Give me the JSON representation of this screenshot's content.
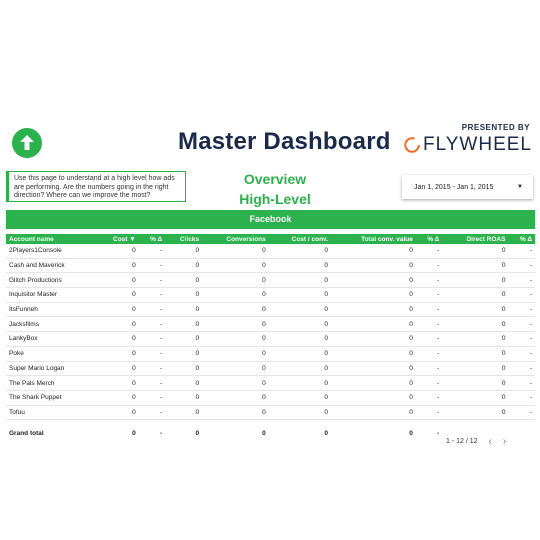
{
  "header": {
    "title": "Master Dashboard",
    "presented_by": "PRESENTED BY",
    "brand": "FLYWHEEL",
    "logo_icon": "upload-arrow-icon"
  },
  "intro": {
    "description": "Use this page to understand at a high level how ads are performing. Are the numbers going in the right direction? Where can we improve the most?",
    "overview_line1": "Overview",
    "overview_line2": "High-Level"
  },
  "date_range": {
    "value": "Jan 1, 2015 - Jan 1, 2015",
    "arrow": "▼"
  },
  "section": {
    "title": "Facebook"
  },
  "table": {
    "columns": [
      "Account name",
      "Cost ▼",
      "% Δ",
      "Clicks",
      "Conversions",
      "Cost / conv.",
      "Total conv. value",
      "% Δ",
      "Direct ROAS",
      "% Δ"
    ],
    "rows": [
      [
        "2Players1Console",
        "0",
        "-",
        "0",
        "0",
        "0",
        "0",
        "-",
        "0",
        "-"
      ],
      [
        "Cash and Maverick",
        "0",
        "-",
        "0",
        "0",
        "0",
        "0",
        "-",
        "0",
        "-"
      ],
      [
        "Glitch Productions",
        "0",
        "-",
        "0",
        "0",
        "0",
        "0",
        "-",
        "0",
        "-"
      ],
      [
        "Inquisitor Master",
        "0",
        "-",
        "0",
        "0",
        "0",
        "0",
        "-",
        "0",
        "-"
      ],
      [
        "ItsFunneh",
        "0",
        "-",
        "0",
        "0",
        "0",
        "0",
        "-",
        "0",
        "-"
      ],
      [
        "Jacksfilms",
        "0",
        "-",
        "0",
        "0",
        "0",
        "0",
        "-",
        "0",
        "-"
      ],
      [
        "LankyBox",
        "0",
        "-",
        "0",
        "0",
        "0",
        "0",
        "-",
        "0",
        "-"
      ],
      [
        "Poke",
        "0",
        "-",
        "0",
        "0",
        "0",
        "0",
        "-",
        "0",
        "-"
      ],
      [
        "Super Mario Logan",
        "0",
        "-",
        "0",
        "0",
        "0",
        "0",
        "-",
        "0",
        "-"
      ],
      [
        "The Pals Merch",
        "0",
        "-",
        "0",
        "0",
        "0",
        "0",
        "-",
        "0",
        "-"
      ],
      [
        "The Shark Puppet",
        "0",
        "-",
        "0",
        "0",
        "0",
        "0",
        "-",
        "0",
        "-"
      ],
      [
        "Tofuu",
        "0",
        "-",
        "0",
        "0",
        "0",
        "0",
        "-",
        "0",
        "-"
      ]
    ],
    "total": [
      "Grand total",
      "0",
      "-",
      "0",
      "0",
      "0",
      "0",
      "-",
      "",
      ""
    ]
  },
  "pagination": {
    "range": "1 - 12 / 12",
    "prev": "‹",
    "next": "›"
  },
  "colors": {
    "accent": "#2bb24c",
    "title": "#1b2a4a"
  }
}
